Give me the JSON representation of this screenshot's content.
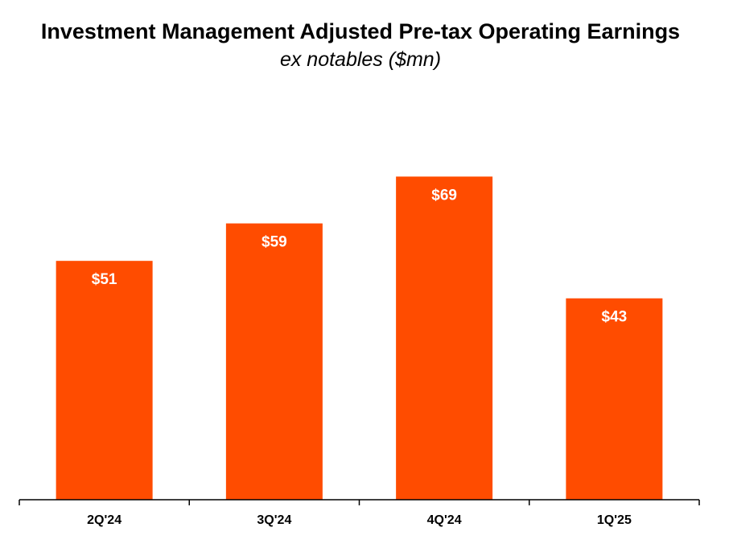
{
  "chart_data": {
    "type": "bar",
    "title": "Investment Management Adjusted Pre-tax Operating Earnings",
    "subtitle": "ex notables ($mn)",
    "categories": [
      "2Q'24",
      "3Q'24",
      "4Q'24",
      "1Q'25"
    ],
    "values": [
      51,
      59,
      69,
      43
    ],
    "data_labels": [
      "$51",
      "$59",
      "$69",
      "$43"
    ],
    "ylim": [
      0,
      80
    ],
    "grid": false,
    "bar_color": "#FF4C00"
  }
}
